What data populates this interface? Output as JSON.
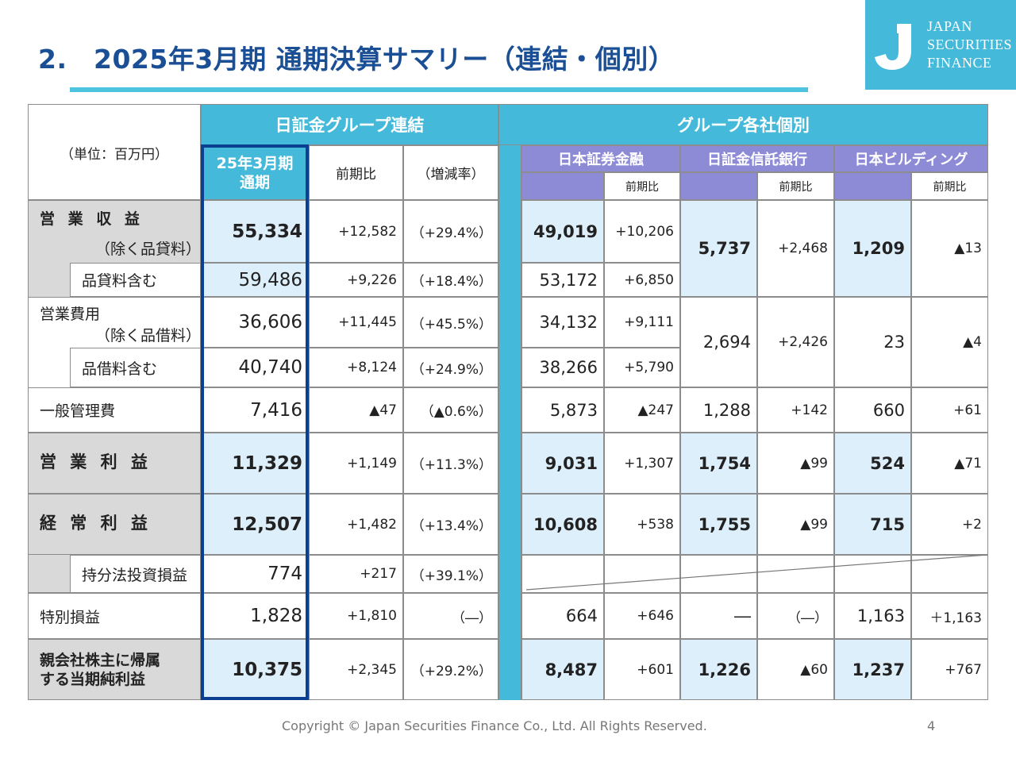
{
  "title": "2.　2025年3月期 通期決算サマリー（連結・個別）",
  "logo": {
    "line1": "JAPAN",
    "line2": "SECURITIES",
    "line3": "FINANCE"
  },
  "unit_label": "（単位：百万円）",
  "headers": {
    "consolidated": "日証金グループ連結",
    "individual": "グループ各社個別",
    "fy_line1": "25年3月期",
    "fy_line2": "通期",
    "yoy": "前期比",
    "rate": "（増減率）",
    "nsfs": "日本証券金融",
    "trust": "日証金信託銀行",
    "building": "日本ビルディング",
    "sub_yoy": "前期比"
  },
  "rows": {
    "op_revenue": {
      "label": "営 業 収 益",
      "sub_label": "（除く品貸料）",
      "cons": "55,334",
      "cons_yoy": "+12,582",
      "cons_rate": "（+29.4%）",
      "nsfs": "49,019",
      "nsfs_yoy": "+10,206",
      "trust": "5,737",
      "trust_yoy": "+2,468",
      "bldg": "1,209",
      "bldg_yoy": "▲13"
    },
    "op_revenue_incl": {
      "label": "品貸料含む",
      "cons": "59,486",
      "cons_yoy": "+9,226",
      "cons_rate": "（+18.4%）",
      "nsfs": "53,172",
      "nsfs_yoy": "+6,850"
    },
    "op_expense": {
      "label": "営業費用",
      "sub_label": "（除く品借料）",
      "cons": "36,606",
      "cons_yoy": "+11,445",
      "cons_rate": "（+45.5%）",
      "nsfs": "34,132",
      "nsfs_yoy": "+9,111",
      "trust": "2,694",
      "trust_yoy": "+2,426",
      "bldg": "23",
      "bldg_yoy": "▲4"
    },
    "op_expense_incl": {
      "label": "品借料含む",
      "cons": "40,740",
      "cons_yoy": "+8,124",
      "cons_rate": "（+24.9%）",
      "nsfs": "38,266",
      "nsfs_yoy": "+5,790"
    },
    "ga": {
      "label": "一般管理費",
      "cons": "7,416",
      "cons_yoy": "▲47",
      "cons_rate": "（▲0.6%）",
      "nsfs": "5,873",
      "nsfs_yoy": "▲247",
      "trust": "1,288",
      "trust_yoy": "+142",
      "bldg": "660",
      "bldg_yoy": "+61"
    },
    "op_income": {
      "label": "営 業 利 益",
      "cons": "11,329",
      "cons_yoy": "+1,149",
      "cons_rate": "（+11.3%）",
      "nsfs": "9,031",
      "nsfs_yoy": "+1,307",
      "trust": "1,754",
      "trust_yoy": "▲99",
      "bldg": "524",
      "bldg_yoy": "▲71"
    },
    "ordinary": {
      "label": "経 常 利 益",
      "cons": "12,507",
      "cons_yoy": "+1,482",
      "cons_rate": "（+13.4%）",
      "nsfs": "10,608",
      "nsfs_yoy": "+538",
      "trust": "1,755",
      "trust_yoy": "▲99",
      "bldg": "715",
      "bldg_yoy": "+2"
    },
    "equity": {
      "label": "持分法投資損益",
      "cons": "774",
      "cons_yoy": "+217",
      "cons_rate": "（+39.1%）"
    },
    "extra": {
      "label": "特別損益",
      "cons": "1,828",
      "cons_yoy": "+1,810",
      "cons_rate": "（―）",
      "nsfs": "664",
      "nsfs_yoy": "+646",
      "trust": "―",
      "trust_yoy": "（―）",
      "bldg": "1,163",
      "bldg_yoy": "＋1,163"
    },
    "net": {
      "label_line1": "親会社株主に帰属",
      "label_line2": "する当期純利益",
      "cons": "10,375",
      "cons_yoy": "+2,345",
      "cons_rate": "（+29.2%）",
      "nsfs": "8,487",
      "nsfs_yoy": "+601",
      "trust": "1,226",
      "trust_yoy": "▲60",
      "bldg": "1,237",
      "bldg_yoy": "+767"
    }
  },
  "footer": "Copyright © Japan Securities Finance Co., Ltd. All Rights Reserved.",
  "page_number": "4",
  "colors": {
    "title": "#1a4f96",
    "header_cyan": "#44b9d9",
    "header_purple": "#8d8ad6",
    "highlight_border": "#0b3f8f",
    "value_bg": "#ddeffa",
    "label_gray": "#d9d9d9"
  }
}
